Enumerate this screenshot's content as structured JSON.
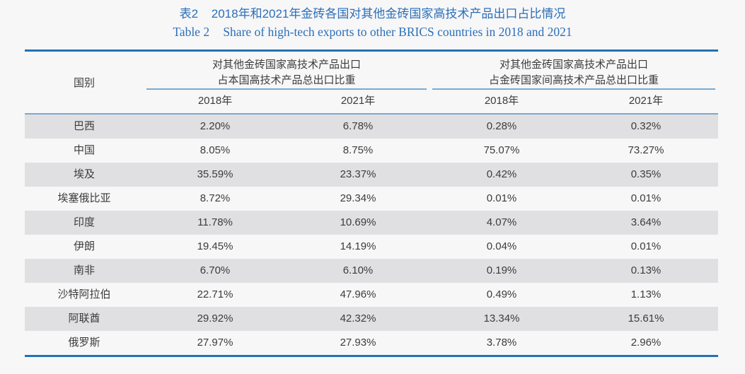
{
  "colors": {
    "page_bg": "#f7f7f8",
    "title_blue": "#2b6fb8",
    "accent_blue": "#2272b5",
    "light_blue_rule": "#7ba9cf",
    "row_stripe_gray": "#e0e0e2",
    "text": "#3c3c3c"
  },
  "caption": {
    "zh_label": "表2",
    "zh_text": "2018年和2021年金砖各国对其他金砖国家高技术产品出口占比情况",
    "en_label": "Table 2",
    "en_text": "Share of high-tech exports to other BRICS countries in 2018 and 2021"
  },
  "table": {
    "country_header": "国别",
    "groups": [
      {
        "line1": "对其他金砖国家高技术产品出口",
        "line2": "占本国高技术产品总出口比重",
        "cols": [
          "2018年",
          "2021年"
        ]
      },
      {
        "line1": "对其他金砖国家高技术产品出口",
        "line2": "占金砖国家间高技术产品总出口比重",
        "cols": [
          "2018年",
          "2021年"
        ]
      }
    ],
    "rows": [
      {
        "country": "巴西",
        "values": [
          "2.20%",
          "6.78%",
          "0.28%",
          "0.32%"
        ]
      },
      {
        "country": "中国",
        "values": [
          "8.05%",
          "8.75%",
          "75.07%",
          "73.27%"
        ]
      },
      {
        "country": "埃及",
        "values": [
          "35.59%",
          "23.37%",
          "0.42%",
          "0.35%"
        ]
      },
      {
        "country": "埃塞俄比亚",
        "values": [
          "8.72%",
          "29.34%",
          "0.01%",
          "0.01%"
        ]
      },
      {
        "country": "印度",
        "values": [
          "11.78%",
          "10.69%",
          "4.07%",
          "3.64%"
        ]
      },
      {
        "country": "伊朗",
        "values": [
          "19.45%",
          "14.19%",
          "0.04%",
          "0.01%"
        ]
      },
      {
        "country": "南非",
        "values": [
          "6.70%",
          "6.10%",
          "0.19%",
          "0.13%"
        ]
      },
      {
        "country": "沙特阿拉伯",
        "values": [
          "22.71%",
          "47.96%",
          "0.49%",
          "1.13%"
        ]
      },
      {
        "country": "阿联酋",
        "values": [
          "29.92%",
          "42.32%",
          "13.34%",
          "15.61%"
        ]
      },
      {
        "country": "俄罗斯",
        "values": [
          "27.97%",
          "27.93%",
          "3.78%",
          "2.96%"
        ]
      }
    ]
  },
  "chart_data": {
    "type": "table",
    "title": "表2 2018年和2021年金砖各国对其他金砖国家高技术产品出口占比情况 / Table 2 Share of high-tech exports to other BRICS countries in 2018 and 2021",
    "columns": [
      "国别",
      "对其他金砖国家高技术产品出口占本国高技术产品总出口比重 2018年",
      "对其他金砖国家高技术产品出口占本国高技术产品总出口比重 2021年",
      "对其他金砖国家高技术产品出口占金砖国家间高技术产品总出口比重 2018年",
      "对其他金砖国家高技术产品出口占金砖国家间高技术产品总出口比重 2021年"
    ],
    "rows": [
      [
        "巴西",
        "2.20%",
        "6.78%",
        "0.28%",
        "0.32%"
      ],
      [
        "中国",
        "8.05%",
        "8.75%",
        "75.07%",
        "73.27%"
      ],
      [
        "埃及",
        "35.59%",
        "23.37%",
        "0.42%",
        "0.35%"
      ],
      [
        "埃塞俄比亚",
        "8.72%",
        "29.34%",
        "0.01%",
        "0.01%"
      ],
      [
        "印度",
        "11.78%",
        "10.69%",
        "4.07%",
        "3.64%"
      ],
      [
        "伊朗",
        "19.45%",
        "14.19%",
        "0.04%",
        "0.01%"
      ],
      [
        "南非",
        "6.70%",
        "6.10%",
        "0.19%",
        "0.13%"
      ],
      [
        "沙特阿拉伯",
        "22.71%",
        "47.96%",
        "0.49%",
        "1.13%"
      ],
      [
        "阿联酋",
        "29.92%",
        "42.32%",
        "13.34%",
        "15.61%"
      ],
      [
        "俄罗斯",
        "27.97%",
        "27.93%",
        "3.78%",
        "2.96%"
      ]
    ]
  }
}
